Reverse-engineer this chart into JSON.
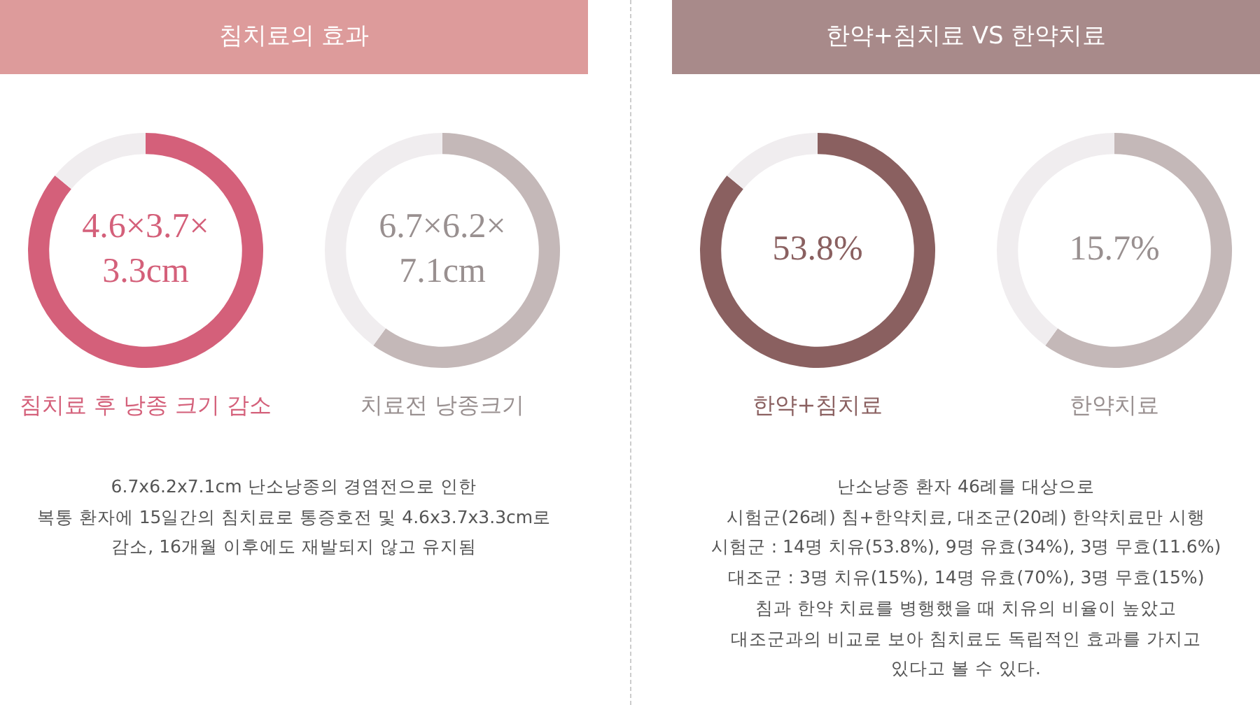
{
  "chart_data": [
    {
      "type": "donut",
      "title": "침치료의 효과",
      "categories": [
        "침치료 후 낭종 크기 감소",
        null
      ],
      "values": [
        86,
        14
      ],
      "colors": [
        "#d4607a",
        "#f0edef"
      ],
      "annotations": [
        "4.6×3.7×",
        "3.3cm"
      ],
      "legend": false
    },
    {
      "type": "donut",
      "categories": [
        "치료전 낭종크기",
        null
      ],
      "values": [
        60,
        40
      ],
      "colors": [
        "#c4b8b8",
        "#f0edef"
      ],
      "annotations": [
        "6.7×6.2×",
        "7.1cm"
      ],
      "legend": false
    },
    {
      "type": "other",
      "annotations": [
        "6.7x6.2x7.1cm 난소낭종의 경염전으로 인한",
        "복통 환자에 15일간의 침치료로 통증호전 및 4.6x3.7x3.3cm로",
        "감소, 16개월  이후에도 재발되지 않고 유지됨"
      ]
    },
    {
      "type": "donut",
      "title": "한약+침치료 VS 한약치료",
      "categories": [
        "한약+침치료",
        null
      ],
      "values": [
        86,
        14
      ],
      "colors": [
        "#8a6060",
        "#f0edef"
      ],
      "annotations": [
        "53.8%"
      ],
      "legend": false
    },
    {
      "type": "donut",
      "categories": [
        "한약치료",
        null
      ],
      "values": [
        60,
        40
      ],
      "colors": [
        "#c4b8b8",
        "#f0edef"
      ],
      "annotations": [
        "15.7%"
      ],
      "legend": false
    },
    {
      "type": "other",
      "annotations": [
        "난소낭종 환자 46례를 대상으로",
        "시험군(26례) 침+한약치료, 대조군(20례) 한약치료만 시행",
        "시험군 : 14명 치유(53.8%), 9명 유효(34%), 3명 무효(11.6%)",
        "대조군 : 3명 치유(15%), 14명 유효(70%), 3명 무효(15%)",
        "침과 한약 치료를 병행했을 때 치유의 비율이 높았고",
        "대조군과의 비교로 보아 침치료도 독립적인 효과를 가지고",
        "있다고 볼 수 있다."
      ]
    }
  ]
}
